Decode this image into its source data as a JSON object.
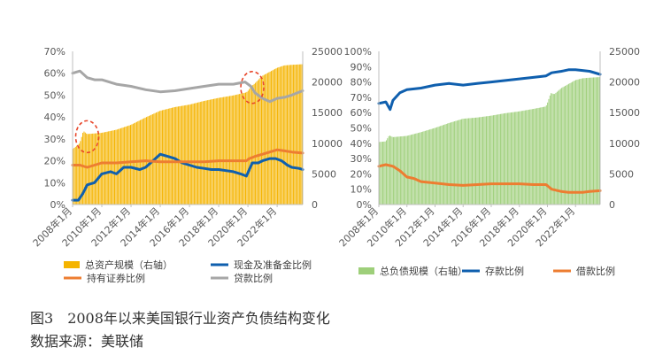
{
  "colors": {
    "orange_bar": "#f5b400",
    "blue": "#0f5fae",
    "orange": "#ed7d31",
    "gray": "#a6a6a6",
    "green": "#9ecf7a",
    "axis": "#bfbfbf",
    "text": "#595959",
    "circle": "#e8462a"
  },
  "x_ticks": [
    "2008年1月",
    "2010年1月",
    "2012年1月",
    "2014年1月",
    "2016年1月",
    "2018年1月",
    "2020年1月",
    "2022年1月"
  ],
  "chart_data": [
    {
      "type": "bar",
      "x_start": 2008.0,
      "x_end": 2023.75,
      "x_ticks": [
        2008,
        2010,
        2012,
        2014,
        2016,
        2018,
        2020,
        2022
      ],
      "left_axis": {
        "min": 0,
        "max": 70,
        "step": 10,
        "labels": [
          "0%",
          "10%",
          "20%",
          "30%",
          "40%",
          "50%",
          "60%",
          "70%"
        ]
      },
      "right_axis": {
        "min": 0,
        "max": 25000,
        "step": 5000,
        "labels": [
          "0",
          "5000",
          "10000",
          "15000",
          "20000",
          "25000"
        ]
      },
      "legend_position": "bottom",
      "series": [
        {
          "name": "总资产规模（右轴）",
          "type": "bar",
          "axis": "right",
          "color": "#f5b400",
          "x": [
            2008.0,
            2008.5,
            2008.75,
            2009.0,
            2010.0,
            2011.0,
            2012.0,
            2013.0,
            2014.0,
            2015.0,
            2016.0,
            2017.0,
            2018.0,
            2019.0,
            2019.9,
            2020.0,
            2020.25,
            2020.5,
            2021.0,
            2022.0,
            2022.5,
            2023.0,
            2023.75
          ],
          "y": [
            9000,
            10000,
            12000,
            11500,
            11700,
            12200,
            13000,
            14200,
            15300,
            15900,
            16300,
            16900,
            17400,
            17800,
            18300,
            18500,
            19300,
            19800,
            21000,
            22300,
            22700,
            22800,
            22900
          ]
        },
        {
          "name": "现金及准备金比例",
          "type": "line",
          "axis": "left",
          "color": "#0f5fae",
          "x": [
            2008.0,
            2008.4,
            2008.7,
            2009.0,
            2009.5,
            2010.0,
            2010.6,
            2011.0,
            2011.5,
            2012.0,
            2012.6,
            2013.0,
            2013.5,
            2014.0,
            2014.5,
            2015.0,
            2015.5,
            2016.0,
            2016.5,
            2017.0,
            2017.5,
            2018.0,
            2018.5,
            2019.0,
            2019.5,
            2019.9,
            2020.1,
            2020.3,
            2020.7,
            2021.0,
            2021.5,
            2021.9,
            2022.3,
            2022.7,
            2023.0,
            2023.5,
            2023.75
          ],
          "y": [
            2,
            2,
            5,
            9,
            10,
            14,
            15,
            14,
            17,
            17,
            16,
            17,
            20,
            23,
            22,
            21,
            19,
            18,
            17,
            16.5,
            16,
            16,
            15.5,
            15,
            14,
            13,
            16,
            19,
            19,
            20,
            21,
            21,
            20,
            18,
            17,
            16.5,
            16
          ]
        },
        {
          "name": "持有证券比例",
          "type": "line",
          "axis": "left",
          "color": "#ed7d31",
          "x": [
            2008.0,
            2008.5,
            2009.0,
            2009.5,
            2010.0,
            2011.0,
            2012.0,
            2013.0,
            2014.0,
            2015.0,
            2016.0,
            2017.0,
            2018.0,
            2019.0,
            2019.9,
            2020.1,
            2020.5,
            2021.0,
            2021.5,
            2022.0,
            2022.5,
            2023.0,
            2023.75
          ],
          "y": [
            18,
            18,
            17,
            18,
            19,
            19,
            19.5,
            20,
            19.5,
            19.5,
            19.5,
            19.5,
            20,
            20,
            20,
            21,
            22,
            23,
            24,
            25,
            24.5,
            24,
            23.5
          ]
        },
        {
          "name": "贷款比例",
          "type": "line",
          "axis": "left",
          "color": "#a6a6a6",
          "x": [
            2008.0,
            2008.5,
            2009.0,
            2009.5,
            2010.0,
            2010.5,
            2011.0,
            2012.0,
            2013.0,
            2014.0,
            2015.0,
            2016.0,
            2017.0,
            2018.0,
            2019.0,
            2019.8,
            2020.2,
            2020.5,
            2021.0,
            2021.5,
            2022.0,
            2022.5,
            2023.0,
            2023.75
          ],
          "y": [
            60,
            61,
            58,
            57,
            57,
            56,
            55,
            54,
            52.5,
            51.5,
            52,
            53,
            54,
            55,
            55,
            56,
            54,
            51,
            48.5,
            47,
            48.5,
            49,
            50,
            52
          ]
        }
      ],
      "annotations": [
        {
          "type": "dashed-circle",
          "cx": 2009.0,
          "cy": 31
        },
        {
          "type": "dashed-circle",
          "cx": 2020.3,
          "cy": 53.5
        }
      ]
    },
    {
      "type": "bar",
      "x_start": 2008.0,
      "x_end": 2023.75,
      "x_ticks": [
        2008,
        2010,
        2012,
        2014,
        2016,
        2018,
        2020,
        2022
      ],
      "left_axis": {
        "min": 0,
        "max": 100,
        "step": 10,
        "labels": [
          "0%",
          "10%",
          "20%",
          "30%",
          "40%",
          "50%",
          "60%",
          "70%",
          "80%",
          "90%",
          "100%"
        ]
      },
      "right_axis": {
        "min": 0,
        "max": 25000,
        "step": 5000,
        "labels": [
          "0",
          "5000",
          "10000",
          "15000",
          "20000",
          "25000"
        ]
      },
      "legend_position": "bottom",
      "series": [
        {
          "name": "总负债规模（右轴）",
          "type": "bar",
          "axis": "right",
          "color": "#9ecf7a",
          "x": [
            2008.0,
            2008.5,
            2008.75,
            2009.0,
            2010.0,
            2011.0,
            2012.0,
            2013.0,
            2014.0,
            2015.0,
            2016.0,
            2017.0,
            2018.0,
            2019.0,
            2019.9,
            2020.0,
            2020.25,
            2020.5,
            2021.0,
            2022.0,
            2022.5,
            2023.0,
            2023.75
          ],
          "y": [
            10200,
            10300,
            11300,
            11000,
            11200,
            11800,
            12500,
            13300,
            14000,
            14200,
            14500,
            14900,
            15200,
            15600,
            16000,
            16500,
            18200,
            18000,
            19000,
            20300,
            20600,
            20700,
            20800
          ]
        },
        {
          "name": "存款比例",
          "type": "line",
          "axis": "left",
          "color": "#0f5fae",
          "x": [
            2008.0,
            2008.5,
            2008.8,
            2009.0,
            2009.5,
            2010.0,
            2011.0,
            2012.0,
            2013.0,
            2014.0,
            2015.0,
            2016.0,
            2017.0,
            2018.0,
            2019.0,
            2019.9,
            2020.3,
            2021.0,
            2021.5,
            2022.0,
            2022.5,
            2023.0,
            2023.75
          ],
          "y": [
            66,
            67,
            62,
            68,
            73,
            75,
            76,
            78,
            79,
            78,
            79,
            80,
            81,
            82,
            83,
            84,
            86,
            87,
            88,
            88,
            87.5,
            87,
            85
          ]
        },
        {
          "name": "借款比例",
          "type": "line",
          "axis": "left",
          "color": "#ed7d31",
          "x": [
            2008.0,
            2008.5,
            2009.0,
            2009.5,
            2010.0,
            2010.5,
            2011.0,
            2012.0,
            2013.0,
            2014.0,
            2015.0,
            2016.0,
            2017.0,
            2018.0,
            2019.0,
            2019.9,
            2020.3,
            2021.0,
            2021.5,
            2022.0,
            2022.5,
            2023.0,
            2023.75
          ],
          "y": [
            25,
            26,
            25,
            22,
            18,
            17,
            15,
            14,
            13,
            12.5,
            13,
            13.5,
            13.5,
            13.5,
            13,
            13,
            10,
            8.5,
            8,
            8,
            8,
            8.5,
            9
          ]
        }
      ],
      "annotations": []
    }
  ],
  "caption": {
    "figure_label": "图3",
    "figure_title": "2008年以来美国银行业资产负债结构变化",
    "source": "数据来源：美联储"
  }
}
